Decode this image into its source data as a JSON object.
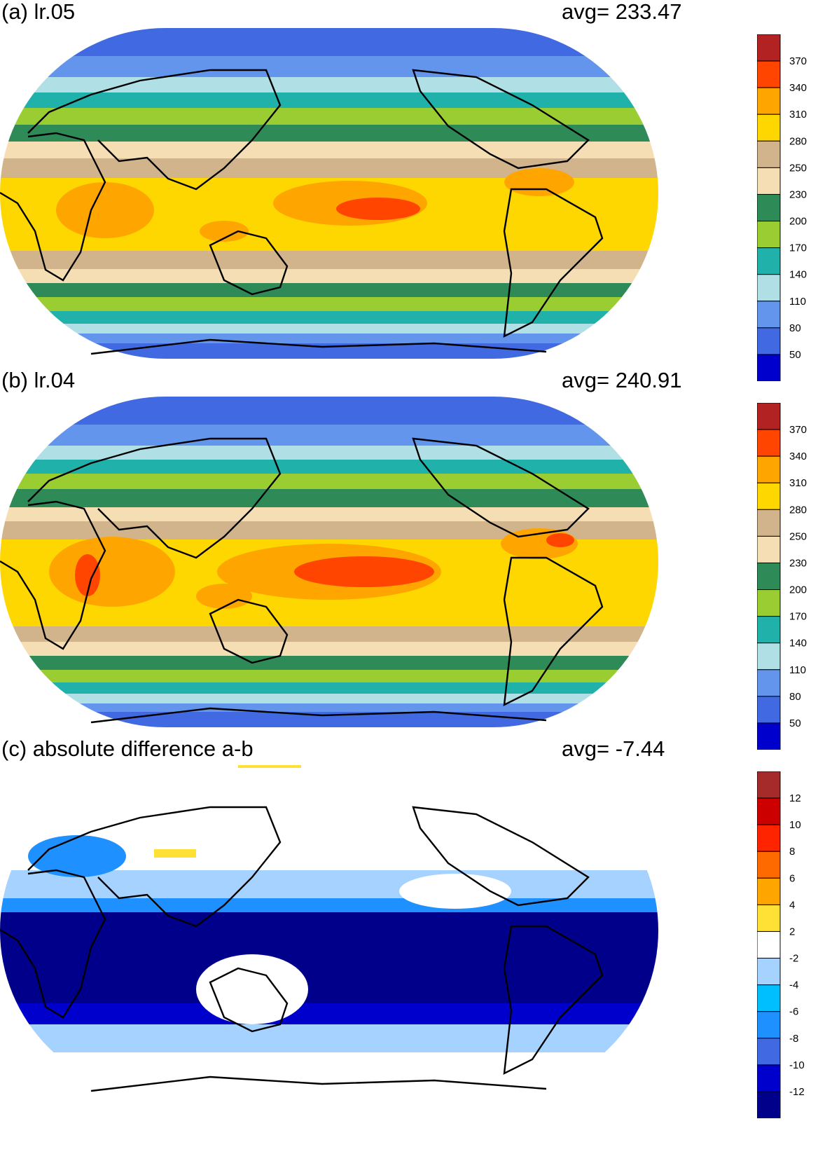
{
  "panels": [
    {
      "id": "a",
      "title": "(a) lr.05",
      "avg": "avg=  233.47",
      "colorbar": {
        "ticks": [
          "370",
          "340",
          "310",
          "280",
          "250",
          "230",
          "200",
          "170",
          "140",
          "110",
          "80",
          "50"
        ],
        "colors": [
          "#b22222",
          "#ff4500",
          "#ffa500",
          "#ffd700",
          "#d2b48c",
          "#f5deb3",
          "#2e8b57",
          "#9acd32",
          "#20b2aa",
          "#b0e0e6",
          "#6495ed",
          "#4169e1",
          "#0000cd"
        ]
      },
      "field_description": "mid-latitude bands; high values (red/orange) in tropical Pacific and Indian Ocean"
    },
    {
      "id": "b",
      "title": "(b) lr.04",
      "avg": "avg=  240.91",
      "colorbar": {
        "ticks": [
          "370",
          "340",
          "310",
          "280",
          "250",
          "230",
          "200",
          "170",
          "140",
          "110",
          "80",
          "50"
        ],
        "colors": [
          "#b22222",
          "#ff4500",
          "#ffa500",
          "#ffd700",
          "#d2b48c",
          "#f5deb3",
          "#2e8b57",
          "#9acd32",
          "#20b2aa",
          "#b0e0e6",
          "#6495ed",
          "#4169e1",
          "#0000cd"
        ]
      }
    },
    {
      "id": "c",
      "title": "(c) absolute difference a-b",
      "avg": "avg=   -7.44",
      "colorbar": {
        "ticks": [
          "12",
          "10",
          "8",
          "6",
          "4",
          "2",
          "-2",
          "-4",
          "-6",
          "-8",
          "-10",
          "-12"
        ],
        "colors": [
          "#a52a2a",
          "#cd0000",
          "#ff2400",
          "#ff6a00",
          "#ffa500",
          "#ffe135",
          "#ffffff",
          "#a6d2ff",
          "#00bfff",
          "#1e90ff",
          "#4169e1",
          "#0000cd",
          "#00008b"
        ]
      }
    }
  ]
}
